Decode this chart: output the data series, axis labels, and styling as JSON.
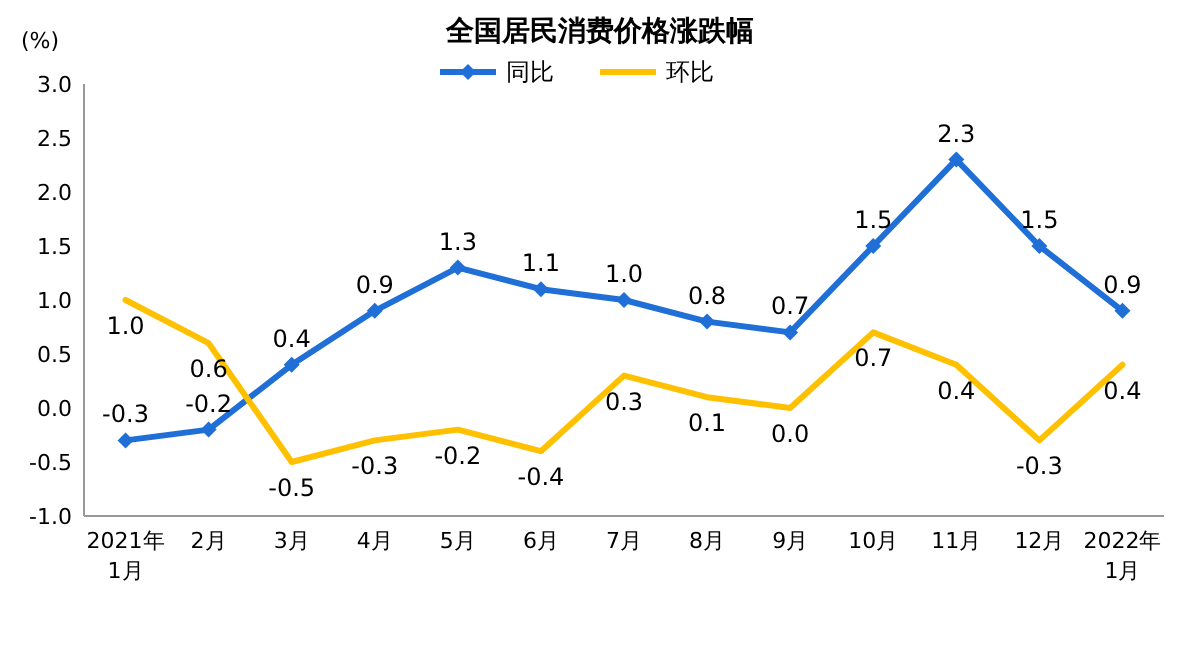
{
  "chart_data": {
    "type": "line",
    "title": "全国居民消费价格涨跌幅",
    "ylabel": "(%)",
    "categories": [
      "2021年\n1月",
      "2月",
      "3月",
      "4月",
      "5月",
      "6月",
      "7月",
      "8月",
      "9月",
      "10月",
      "11月",
      "12月",
      "2022年\n1月"
    ],
    "series": [
      {
        "name": "同比",
        "color": "#1f6fd6",
        "marker": "diamond",
        "values": [
          -0.3,
          -0.2,
          0.4,
          0.9,
          1.3,
          1.1,
          1.0,
          0.8,
          0.7,
          1.5,
          2.3,
          1.5,
          0.9
        ],
        "value_labels": [
          "-0.3",
          "-0.2",
          "0.4",
          "0.9",
          "1.3",
          "1.1",
          "1.0",
          "0.8",
          "0.7",
          "1.5",
          "2.3",
          "1.5",
          "0.9"
        ]
      },
      {
        "name": "环比",
        "color": "#ffc000",
        "marker": "none",
        "values": [
          1.0,
          0.6,
          -0.5,
          -0.3,
          -0.2,
          -0.4,
          0.3,
          0.1,
          0.0,
          0.7,
          0.4,
          -0.3,
          0.4
        ],
        "value_labels": [
          "1.0",
          "0.6",
          "-0.5",
          "-0.3",
          "-0.2",
          "-0.4",
          "0.3",
          "0.1",
          "0.0",
          "0.7",
          "0.4",
          "-0.3",
          "0.4"
        ]
      }
    ],
    "ylim": [
      -1.0,
      3.0
    ],
    "yticks": [
      {
        "value": -1.0,
        "label": "-1.0"
      },
      {
        "value": -0.5,
        "label": "-0.5"
      },
      {
        "value": 0,
        "label": "0.0"
      },
      {
        "value": 0.5,
        "label": "0.5"
      },
      {
        "value": 1.0,
        "label": "1.0"
      },
      {
        "value": 1.5,
        "label": "1.5"
      },
      {
        "value": 2.0,
        "label": "2.0"
      },
      {
        "value": 2.5,
        "label": "2.5"
      },
      {
        "value": 3.0,
        "label": "3.0"
      }
    ],
    "legend": "top",
    "grid": false,
    "line_style": "solid"
  }
}
